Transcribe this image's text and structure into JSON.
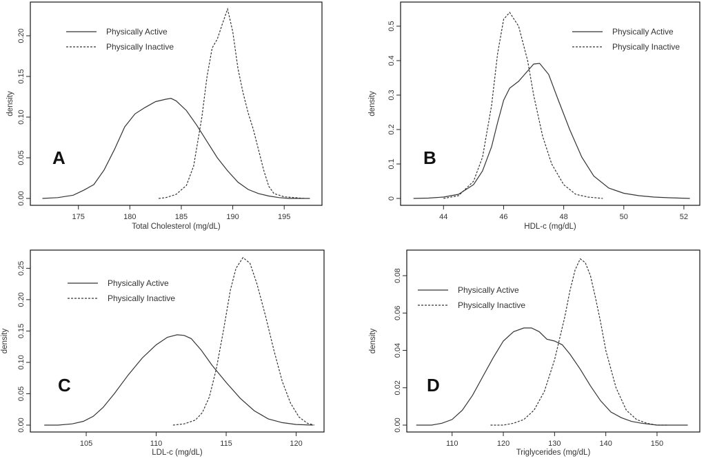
{
  "chart_data": [
    {
      "type": "line",
      "panel_label": "A",
      "xlabel": "Total Cholesterol (mg/dL)",
      "ylabel": "density",
      "xlim": [
        171,
        198
      ],
      "ylim": [
        0,
        0.233
      ],
      "xticks": [
        175,
        180,
        185,
        190,
        195
      ],
      "yticks": [
        0.0,
        0.05,
        0.1,
        0.15,
        0.2
      ],
      "ytick_labels": [
        "0.00",
        "0.05",
        "0.10",
        "0.15",
        "0.20"
      ],
      "legend_position": "top-left",
      "series": [
        {
          "name": "Physically Active",
          "style": "solid",
          "x": [
            171.5,
            173,
            174.5,
            175.5,
            176.5,
            177.5,
            178.5,
            179.5,
            180.5,
            181.5,
            182.5,
            183.5,
            184,
            184.5,
            185.5,
            186.5,
            187.5,
            188.5,
            189.5,
            190.5,
            191.5,
            192.5,
            193.5,
            194.5,
            195.5,
            196.5,
            197.5
          ],
          "y": [
            0.0,
            0.001,
            0.004,
            0.01,
            0.017,
            0.035,
            0.06,
            0.088,
            0.104,
            0.112,
            0.119,
            0.122,
            0.123,
            0.12,
            0.108,
            0.09,
            0.07,
            0.05,
            0.034,
            0.02,
            0.011,
            0.006,
            0.003,
            0.001,
            0.0,
            0.0,
            0.0
          ]
        },
        {
          "name": "Physically Inactive",
          "style": "dashed",
          "x": [
            182.8,
            183.5,
            184.5,
            185.5,
            186.2,
            187,
            187.5,
            188,
            188.5,
            189,
            189.5,
            190,
            190.5,
            191,
            191.5,
            192,
            192.5,
            193,
            193.5,
            194,
            195,
            196,
            197
          ],
          "y": [
            0.0,
            0.001,
            0.005,
            0.016,
            0.04,
            0.1,
            0.15,
            0.185,
            0.196,
            0.215,
            0.233,
            0.205,
            0.16,
            0.13,
            0.105,
            0.085,
            0.06,
            0.035,
            0.015,
            0.006,
            0.002,
            0.001,
            0.0
          ]
        }
      ]
    },
    {
      "type": "line",
      "panel_label": "B",
      "xlabel": "HDL-c (mg/dL)",
      "ylabel": "density",
      "xlim": [
        42.8,
        52.3
      ],
      "ylim": [
        0,
        0.55
      ],
      "xticks": [
        44,
        46,
        48,
        50,
        52
      ],
      "yticks": [
        0,
        0.1,
        0.2,
        0.3,
        0.4,
        0.5
      ],
      "ytick_labels": [
        "0",
        "0.1",
        "0.2",
        "0.3",
        "0.4",
        "0.5"
      ],
      "legend_position": "top-right",
      "series": [
        {
          "name": "Physically Active",
          "style": "solid",
          "x": [
            43,
            43.5,
            44,
            44.5,
            45,
            45.3,
            45.6,
            45.8,
            46,
            46.2,
            46.5,
            46.8,
            47,
            47.2,
            47.5,
            47.8,
            48.2,
            48.6,
            49,
            49.5,
            50,
            50.5,
            51,
            51.5,
            52.2
          ],
          "y": [
            0.0,
            0.001,
            0.004,
            0.012,
            0.04,
            0.08,
            0.15,
            0.22,
            0.285,
            0.32,
            0.34,
            0.37,
            0.39,
            0.392,
            0.36,
            0.29,
            0.2,
            0.12,
            0.065,
            0.03,
            0.015,
            0.008,
            0.004,
            0.002,
            0.0
          ]
        },
        {
          "name": "Physically Inactive",
          "style": "dashed",
          "x": [
            44,
            44.5,
            45,
            45.3,
            45.6,
            45.8,
            46,
            46.2,
            46.5,
            46.8,
            47,
            47.3,
            47.6,
            48,
            48.4,
            48.8,
            49.3
          ],
          "y": [
            0.0,
            0.008,
            0.05,
            0.12,
            0.27,
            0.42,
            0.52,
            0.54,
            0.5,
            0.4,
            0.3,
            0.18,
            0.1,
            0.04,
            0.012,
            0.004,
            0.0
          ]
        }
      ]
    },
    {
      "type": "line",
      "panel_label": "C",
      "xlabel": "LDL-c (mg/dL)",
      "ylabel": "density",
      "xlim": [
        101.5,
        121.5
      ],
      "ylim": [
        0,
        0.268
      ],
      "xticks": [
        105,
        110,
        115,
        120
      ],
      "yticks": [
        0.0,
        0.05,
        0.1,
        0.15,
        0.2,
        0.25
      ],
      "ytick_labels": [
        "0.00",
        "0.05",
        "0.10",
        "0.15",
        "0.20",
        "0.25"
      ],
      "legend_position": "top-left",
      "series": [
        {
          "name": "Physically Active",
          "style": "solid",
          "x": [
            102,
            103,
            104,
            104.8,
            105.5,
            106.2,
            107,
            108,
            109,
            110,
            110.8,
            111.5,
            112,
            112.5,
            113.2,
            114,
            115,
            116,
            117,
            118,
            119,
            120,
            121.2
          ],
          "y": [
            0.0,
            0.0,
            0.002,
            0.006,
            0.014,
            0.028,
            0.05,
            0.08,
            0.107,
            0.128,
            0.14,
            0.144,
            0.143,
            0.138,
            0.12,
            0.095,
            0.068,
            0.043,
            0.023,
            0.01,
            0.004,
            0.001,
            0.0
          ]
        },
        {
          "name": "Physically Inactive",
          "style": "dashed",
          "x": [
            111.2,
            112,
            112.8,
            113.3,
            113.8,
            114.3,
            114.8,
            115.3,
            115.7,
            116.2,
            116.7,
            117.2,
            117.8,
            118.4,
            119,
            119.6,
            120.2,
            120.8,
            121.3
          ],
          "y": [
            0.0,
            0.002,
            0.008,
            0.02,
            0.045,
            0.09,
            0.15,
            0.215,
            0.25,
            0.267,
            0.258,
            0.225,
            0.175,
            0.12,
            0.07,
            0.035,
            0.013,
            0.003,
            0.0
          ]
        }
      ]
    },
    {
      "type": "line",
      "panel_label": "D",
      "xlabel": "Triglycerides (mg/dL)",
      "ylabel": "density",
      "xlim": [
        102.5,
        157
      ],
      "ylim": [
        0,
        0.09
      ],
      "xticks": [
        110,
        120,
        130,
        140,
        150
      ],
      "yticks": [
        0.0,
        0.02,
        0.04,
        0.06,
        0.08
      ],
      "ytick_labels": [
        "0.00",
        "0.02",
        "0.04",
        "0.06",
        "0.08"
      ],
      "legend_position": "top-left",
      "series": [
        {
          "name": "Physically Active",
          "style": "solid",
          "x": [
            103,
            106,
            108,
            110,
            112,
            114,
            116,
            118,
            120,
            122,
            124,
            125.5,
            127,
            128.5,
            130,
            131.5,
            133,
            135,
            137,
            139,
            141,
            143,
            145,
            147,
            150,
            153,
            156
          ],
          "y": [
            0.0,
            0.0,
            0.001,
            0.003,
            0.008,
            0.016,
            0.026,
            0.036,
            0.045,
            0.05,
            0.052,
            0.052,
            0.05,
            0.046,
            0.045,
            0.043,
            0.038,
            0.03,
            0.021,
            0.013,
            0.007,
            0.004,
            0.002,
            0.001,
            0.0,
            0.0,
            0.0
          ]
        },
        {
          "name": "Physically Inactive",
          "style": "dashed",
          "x": [
            117.5,
            120,
            122,
            124,
            126,
            128,
            130,
            132,
            133,
            134,
            135,
            136,
            137,
            138,
            139,
            140,
            142,
            144,
            146,
            148,
            150,
            152
          ],
          "y": [
            0.0,
            0.0,
            0.001,
            0.003,
            0.008,
            0.018,
            0.035,
            0.058,
            0.072,
            0.083,
            0.089,
            0.087,
            0.08,
            0.068,
            0.055,
            0.04,
            0.02,
            0.008,
            0.003,
            0.001,
            0.0,
            0.0
          ]
        }
      ]
    }
  ]
}
